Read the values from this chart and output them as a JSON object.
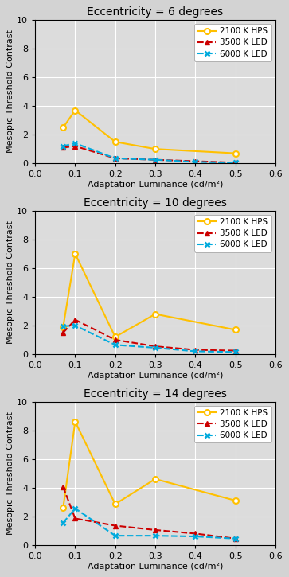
{
  "panels": [
    {
      "title": "Eccentricity = 6 degrees",
      "x": [
        0.07,
        0.1,
        0.2,
        0.3,
        0.4,
        0.5
      ],
      "hps": [
        2.5,
        3.7,
        1.5,
        1.0,
        null,
        0.7
      ],
      "led3500": [
        1.1,
        1.2,
        0.35,
        0.25,
        0.15,
        0.05
      ],
      "led6000": [
        1.2,
        1.4,
        0.35,
        0.25,
        0.1,
        0.05
      ]
    },
    {
      "title": "Eccentricity = 10 degrees",
      "x": [
        0.07,
        0.1,
        0.2,
        0.3,
        0.4,
        0.5
      ],
      "hps": [
        1.9,
        7.0,
        1.2,
        2.8,
        null,
        1.7
      ],
      "led3500": [
        1.5,
        2.4,
        1.0,
        0.55,
        0.3,
        0.25
      ],
      "led6000": [
        1.95,
        2.0,
        0.65,
        0.45,
        0.2,
        0.15
      ]
    },
    {
      "title": "Eccentricity = 14 degrees",
      "x": [
        0.07,
        0.1,
        0.2,
        0.3,
        0.4,
        0.5
      ],
      "hps": [
        2.6,
        8.6,
        2.85,
        4.6,
        null,
        3.1
      ],
      "led3500": [
        4.05,
        1.85,
        1.35,
        1.05,
        0.8,
        0.45
      ],
      "led6000": [
        1.55,
        2.55,
        0.65,
        0.65,
        0.6,
        0.45
      ]
    }
  ],
  "hps_color": "#FFC000",
  "led3500_color": "#CC0000",
  "led6000_color": "#00AADD",
  "legend_labels": [
    "2100 K HPS",
    "3500 K LED",
    "6000 K LED"
  ],
  "xlabel": "Adaptation Luminance (cd/m²)",
  "ylabel": "Mesopic Threshold Contrast",
  "xlim": [
    0,
    0.6
  ],
  "ylim": [
    0,
    10
  ],
  "xticks": [
    0,
    0.1,
    0.2,
    0.3,
    0.4,
    0.5,
    0.6
  ],
  "yticks": [
    0,
    2,
    4,
    6,
    8,
    10
  ],
  "plot_bg_color": "#DCDCDC",
  "fig_bg_color": "#FFFFFF",
  "outer_bg_color": "#D3D3D3"
}
